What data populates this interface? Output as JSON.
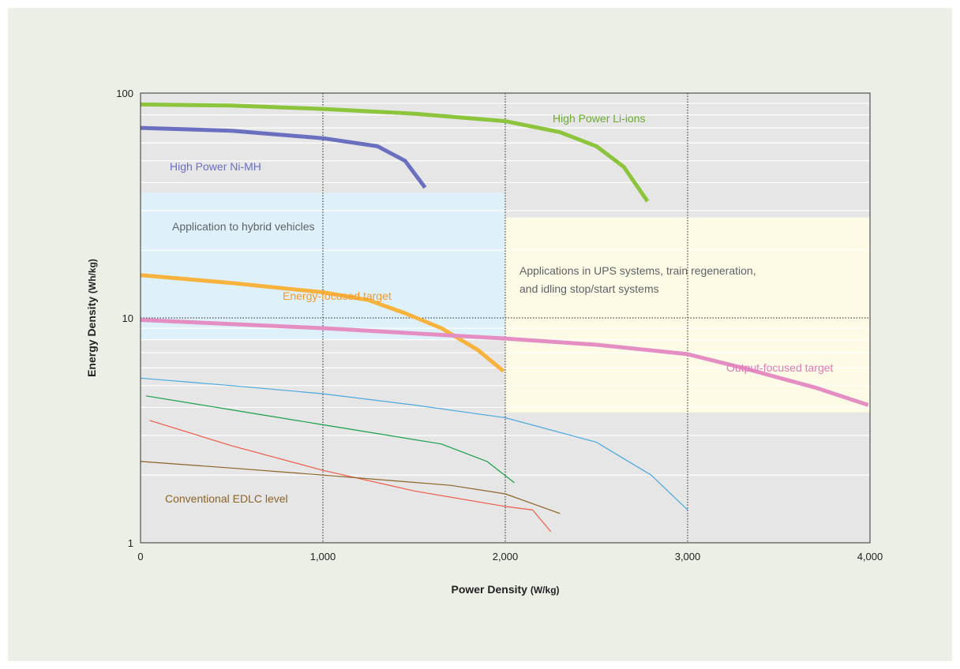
{
  "chart_data": {
    "type": "line",
    "xlabel": "Power Density",
    "xlabel_unit": "(W/kg)",
    "ylabel": "Energy Density",
    "ylabel_unit": "(Wh/kg)",
    "xlim": [
      0,
      4000
    ],
    "ylim": [
      1,
      100
    ],
    "yscale": "log",
    "grid": true,
    "x_ticks": [
      0,
      1000,
      2000,
      3000,
      4000
    ],
    "x_tick_labels": [
      "0",
      "1,000",
      "2,000",
      "3,000",
      "4,000"
    ],
    "y_ticks": [
      1,
      10,
      100
    ],
    "y_tick_labels": [
      "1",
      "10",
      "100"
    ],
    "regions": [
      {
        "name": "hybrid",
        "label": "Application to hybrid vehicles",
        "x": [
          0,
          2000
        ],
        "y": [
          8.0,
          36
        ],
        "color": "#def0f9"
      },
      {
        "name": "ups",
        "label": "Applications in UPS systems, train regeneration,\nand idling stop/start systems",
        "x": [
          2000,
          4000
        ],
        "y": [
          3.8,
          28
        ],
        "color": "#fdfbe5"
      }
    ],
    "series": [
      {
        "name": "High Power Li-ions",
        "color": "#8cc43c",
        "width": 5,
        "points": [
          [
            0,
            89
          ],
          [
            500,
            88
          ],
          [
            1000,
            85
          ],
          [
            1500,
            81
          ],
          [
            2000,
            75
          ],
          [
            2300,
            67
          ],
          [
            2500,
            58
          ],
          [
            2650,
            47
          ],
          [
            2780,
            33
          ]
        ]
      },
      {
        "name": "High Power Ni-MH",
        "color": "#6b6fbf",
        "width": 5,
        "points": [
          [
            0,
            70
          ],
          [
            500,
            68
          ],
          [
            1000,
            63
          ],
          [
            1300,
            58
          ],
          [
            1450,
            50
          ],
          [
            1560,
            38
          ]
        ]
      },
      {
        "name": "Energy-focused target",
        "color": "#f8b23e",
        "width": 5,
        "points": [
          [
            0,
            15.5
          ],
          [
            500,
            14.3
          ],
          [
            1000,
            13
          ],
          [
            1250,
            12
          ],
          [
            1450,
            10.5
          ],
          [
            1650,
            9
          ],
          [
            1850,
            7.2
          ],
          [
            1990,
            5.8
          ]
        ]
      },
      {
        "name": "Output-focused target",
        "color": "#e58ec3",
        "width": 5,
        "points": [
          [
            0,
            9.8
          ],
          [
            1000,
            9.0
          ],
          [
            2000,
            8.1
          ],
          [
            2500,
            7.6
          ],
          [
            3000,
            6.9
          ],
          [
            3300,
            6.0
          ],
          [
            3700,
            4.9
          ],
          [
            3990,
            4.1
          ]
        ]
      },
      {
        "name": "",
        "color": "#4ba8de",
        "width": 1.2,
        "points": [
          [
            0,
            5.4
          ],
          [
            500,
            5.0
          ],
          [
            1000,
            4.6
          ],
          [
            1500,
            4.1
          ],
          [
            2000,
            3.6
          ],
          [
            2500,
            2.8
          ],
          [
            2800,
            2.0
          ],
          [
            3000,
            1.4
          ]
        ]
      },
      {
        "name": "",
        "color": "#1a9d4c",
        "width": 1.2,
        "points": [
          [
            30,
            4.5
          ],
          [
            500,
            3.9
          ],
          [
            1000,
            3.35
          ],
          [
            1650,
            2.75
          ],
          [
            1900,
            2.3
          ],
          [
            2050,
            1.85
          ]
        ]
      },
      {
        "name": "",
        "color": "#ee5a47",
        "width": 1.2,
        "points": [
          [
            50,
            3.5
          ],
          [
            500,
            2.7
          ],
          [
            1000,
            2.1
          ],
          [
            1500,
            1.7
          ],
          [
            2000,
            1.45
          ],
          [
            2150,
            1.4
          ],
          [
            2250,
            1.12
          ]
        ]
      },
      {
        "name": "",
        "color": "#8a6326",
        "width": 1.2,
        "points": [
          [
            0,
            2.3
          ],
          [
            500,
            2.15
          ],
          [
            1000,
            2.0
          ],
          [
            1700,
            1.8
          ],
          [
            2000,
            1.65
          ],
          [
            2300,
            1.35
          ]
        ]
      }
    ],
    "labels": [
      {
        "text": "High Power Li-ions",
        "color": "#6aab2e"
      },
      {
        "text": "High Power Ni-MH",
        "color": "#6b6fbf"
      },
      {
        "text": "Application to hybrid vehicles",
        "color": "#5f6268"
      },
      {
        "text": "Applications in UPS systems, train regeneration,",
        "color": "#5f6268"
      },
      {
        "text": "and idling stop/start systems",
        "color": "#5f6268"
      },
      {
        "text": "Energy-focused target",
        "color": "#f39a2b"
      },
      {
        "text": "Output-focused target",
        "color": "#e07ab8"
      },
      {
        "text": "Conventional EDLC level",
        "color": "#8a6326"
      }
    ]
  }
}
